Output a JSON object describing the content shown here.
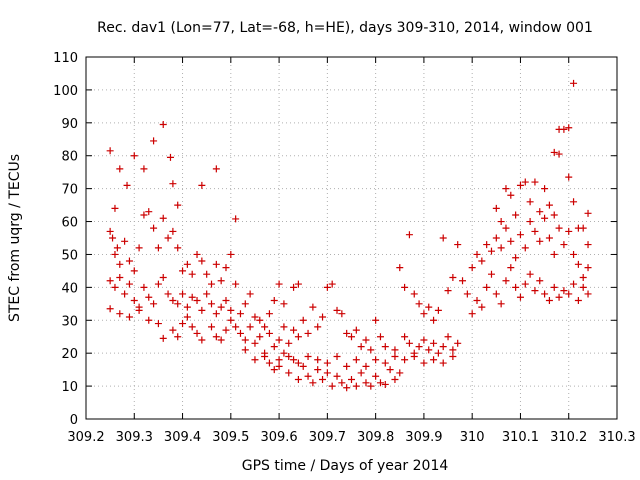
{
  "chart_data": {
    "type": "scatter",
    "title": "Rec. dav1 (Lon=77, Lat=-68, h=HE), days 309-310, 2014, window 001",
    "xlabel": "GPS time / Days of year 2014",
    "ylabel": "STEC from uqrg / TECUs",
    "xlim": [
      309.2,
      310.3
    ],
    "ylim": [
      0,
      110
    ],
    "xticks": [
      309.2,
      309.3,
      309.4,
      309.5,
      309.6,
      309.7,
      309.8,
      309.9,
      310,
      310.1,
      310.2,
      310.3
    ],
    "xtick_labels": [
      "309.2",
      "309.3",
      "309.4",
      "309.5",
      "309.6",
      "309.7",
      "309.8",
      "309.9",
      "310",
      "310.1",
      "310.2",
      "310.3"
    ],
    "yticks": [
      0,
      10,
      20,
      30,
      40,
      50,
      60,
      70,
      80,
      90,
      100,
      110
    ],
    "ytick_labels": [
      "0",
      "10",
      "20",
      "30",
      "40",
      "50",
      "60",
      "70",
      "80",
      "90",
      "100",
      "110"
    ],
    "grid": true,
    "marker": "+",
    "color": "#cc0000",
    "series": [
      {
        "name": "STEC",
        "points": [
          [
            309.25,
            81.5
          ],
          [
            309.26,
            64
          ],
          [
            309.27,
            76
          ],
          [
            309.285,
            71
          ],
          [
            309.3,
            80
          ],
          [
            309.32,
            76
          ],
          [
            309.34,
            84.5
          ],
          [
            309.36,
            89.5
          ],
          [
            309.375,
            79.5
          ],
          [
            309.38,
            71.5
          ],
          [
            309.39,
            65
          ],
          [
            309.44,
            71
          ],
          [
            309.47,
            76
          ],
          [
            309.51,
            60.8
          ],
          [
            309.25,
            57
          ],
          [
            309.255,
            55
          ],
          [
            309.26,
            50
          ],
          [
            309.265,
            52
          ],
          [
            309.27,
            47
          ],
          [
            309.28,
            54
          ],
          [
            309.29,
            48
          ],
          [
            309.3,
            45
          ],
          [
            309.31,
            52
          ],
          [
            309.32,
            62
          ],
          [
            309.33,
            63
          ],
          [
            309.34,
            58
          ],
          [
            309.35,
            52
          ],
          [
            309.36,
            61
          ],
          [
            309.37,
            55
          ],
          [
            309.38,
            57
          ],
          [
            309.39,
            52
          ],
          [
            309.4,
            45
          ],
          [
            309.41,
            47
          ],
          [
            309.42,
            44
          ],
          [
            309.43,
            50
          ],
          [
            309.44,
            48
          ],
          [
            309.45,
            44
          ],
          [
            309.46,
            41
          ],
          [
            309.47,
            47
          ],
          [
            309.48,
            42
          ],
          [
            309.49,
            46
          ],
          [
            309.5,
            50
          ],
          [
            309.51,
            41
          ],
          [
            309.25,
            42
          ],
          [
            309.26,
            40
          ],
          [
            309.27,
            43
          ],
          [
            309.28,
            38
          ],
          [
            309.29,
            41
          ],
          [
            309.3,
            36
          ],
          [
            309.31,
            34
          ],
          [
            309.32,
            40
          ],
          [
            309.33,
            37
          ],
          [
            309.34,
            35
          ],
          [
            309.35,
            41
          ],
          [
            309.36,
            43
          ],
          [
            309.37,
            38
          ],
          [
            309.38,
            36
          ],
          [
            309.39,
            35
          ],
          [
            309.4,
            38
          ],
          [
            309.41,
            34
          ],
          [
            309.42,
            37
          ],
          [
            309.43,
            36
          ],
          [
            309.44,
            33
          ],
          [
            309.45,
            38
          ],
          [
            309.46,
            35
          ],
          [
            309.47,
            32
          ],
          [
            309.48,
            34
          ],
          [
            309.49,
            36
          ],
          [
            309.5,
            33
          ],
          [
            309.25,
            33.5
          ],
          [
            309.27,
            32
          ],
          [
            309.29,
            31
          ],
          [
            309.31,
            33
          ],
          [
            309.33,
            30
          ],
          [
            309.35,
            29
          ],
          [
            309.36,
            24.5
          ],
          [
            309.38,
            27
          ],
          [
            309.39,
            25
          ],
          [
            309.4,
            29
          ],
          [
            309.41,
            31
          ],
          [
            309.42,
            28
          ],
          [
            309.43,
            26
          ],
          [
            309.44,
            24
          ],
          [
            309.46,
            28
          ],
          [
            309.47,
            25
          ],
          [
            309.48,
            24
          ],
          [
            309.49,
            27
          ],
          [
            309.5,
            30
          ],
          [
            309.51,
            28
          ],
          [
            309.52,
            32
          ],
          [
            309.53,
            35
          ],
          [
            309.54,
            38
          ],
          [
            309.55,
            31
          ],
          [
            309.56,
            30
          ],
          [
            309.57,
            28
          ],
          [
            309.58,
            32
          ],
          [
            309.59,
            36
          ],
          [
            309.6,
            41
          ],
          [
            309.61,
            35
          ],
          [
            309.63,
            40
          ],
          [
            309.64,
            41
          ],
          [
            309.52,
            26
          ],
          [
            309.53,
            24
          ],
          [
            309.54,
            28
          ],
          [
            309.55,
            23
          ],
          [
            309.56,
            25
          ],
          [
            309.57,
            20
          ],
          [
            309.58,
            26
          ],
          [
            309.59,
            22
          ],
          [
            309.6,
            24
          ],
          [
            309.61,
            28
          ],
          [
            309.62,
            23
          ],
          [
            309.63,
            27
          ],
          [
            309.64,
            25
          ],
          [
            309.65,
            30
          ],
          [
            309.66,
            26
          ],
          [
            309.67,
            34
          ],
          [
            309.68,
            28
          ],
          [
            309.69,
            31
          ],
          [
            309.7,
            40
          ],
          [
            309.71,
            41
          ],
          [
            309.72,
            33
          ],
          [
            309.73,
            32
          ],
          [
            309.74,
            26
          ],
          [
            309.75,
            25
          ],
          [
            309.76,
            27
          ],
          [
            309.77,
            22
          ],
          [
            309.78,
            24
          ],
          [
            309.79,
            21
          ],
          [
            309.8,
            30
          ],
          [
            309.81,
            25
          ],
          [
            309.53,
            21
          ],
          [
            309.55,
            18
          ],
          [
            309.57,
            19
          ],
          [
            309.58,
            17
          ],
          [
            309.59,
            15
          ],
          [
            309.6,
            16
          ],
          [
            309.61,
            20
          ],
          [
            309.62,
            14
          ],
          [
            309.63,
            18
          ],
          [
            309.64,
            12
          ],
          [
            309.65,
            16
          ],
          [
            309.66,
            13
          ],
          [
            309.67,
            11
          ],
          [
            309.68,
            15
          ],
          [
            309.69,
            12
          ],
          [
            309.7,
            14
          ],
          [
            309.71,
            10
          ],
          [
            309.72,
            13
          ],
          [
            309.73,
            11
          ],
          [
            309.74,
            9.5
          ],
          [
            309.75,
            12
          ],
          [
            309.76,
            10
          ],
          [
            309.77,
            14
          ],
          [
            309.78,
            11
          ],
          [
            309.79,
            10
          ],
          [
            309.8,
            13
          ],
          [
            309.81,
            11
          ],
          [
            309.82,
            10.5
          ],
          [
            309.83,
            15
          ],
          [
            309.84,
            12
          ],
          [
            309.85,
            14
          ],
          [
            309.6,
            18
          ],
          [
            309.62,
            19
          ],
          [
            309.64,
            17
          ],
          [
            309.66,
            19
          ],
          [
            309.68,
            18
          ],
          [
            309.7,
            17
          ],
          [
            309.72,
            19
          ],
          [
            309.74,
            16
          ],
          [
            309.76,
            18
          ],
          [
            309.78,
            16
          ],
          [
            309.8,
            18
          ],
          [
            309.82,
            17
          ],
          [
            309.84,
            19
          ],
          [
            309.86,
            18
          ],
          [
            309.88,
            19
          ],
          [
            309.9,
            17
          ],
          [
            309.92,
            18
          ],
          [
            309.94,
            17
          ],
          [
            309.96,
            19
          ],
          [
            309.82,
            22
          ],
          [
            309.84,
            21
          ],
          [
            309.86,
            25
          ],
          [
            309.87,
            23
          ],
          [
            309.88,
            20
          ],
          [
            309.89,
            22
          ],
          [
            309.9,
            24
          ],
          [
            309.91,
            21
          ],
          [
            309.92,
            23
          ],
          [
            309.93,
            20
          ],
          [
            309.94,
            22
          ],
          [
            309.95,
            25
          ],
          [
            309.96,
            21
          ],
          [
            309.97,
            23
          ],
          [
            309.85,
            46
          ],
          [
            309.86,
            40
          ],
          [
            309.87,
            56
          ],
          [
            309.88,
            38
          ],
          [
            309.89,
            35
          ],
          [
            309.9,
            32
          ],
          [
            309.91,
            34
          ],
          [
            309.92,
            30
          ],
          [
            309.93,
            33
          ],
          [
            309.94,
            55
          ],
          [
            309.95,
            39
          ],
          [
            309.96,
            43
          ],
          [
            309.97,
            53
          ],
          [
            309.98,
            42
          ],
          [
            309.99,
            38
          ],
          [
            310.0,
            32
          ],
          [
            310.01,
            36
          ],
          [
            310.02,
            34
          ],
          [
            310.03,
            40
          ],
          [
            310.04,
            44
          ],
          [
            310.05,
            38
          ],
          [
            310.06,
            35
          ],
          [
            310.07,
            42
          ],
          [
            310.08,
            46
          ],
          [
            310.09,
            40
          ],
          [
            310.1,
            37
          ],
          [
            310.11,
            41
          ],
          [
            310.12,
            44
          ],
          [
            310.13,
            39
          ],
          [
            310.14,
            42
          ],
          [
            310.15,
            38
          ],
          [
            310.16,
            36
          ],
          [
            310.17,
            40
          ],
          [
            310.18,
            37
          ],
          [
            310.19,
            39
          ],
          [
            310.2,
            38
          ],
          [
            310.21,
            41
          ],
          [
            310.22,
            36
          ],
          [
            310.23,
            40
          ],
          [
            310.24,
            38
          ],
          [
            310.0,
            46
          ],
          [
            310.01,
            50
          ],
          [
            310.02,
            48
          ],
          [
            310.03,
            53
          ],
          [
            310.04,
            51
          ],
          [
            310.05,
            55
          ],
          [
            310.06,
            52
          ],
          [
            310.07,
            58
          ],
          [
            310.08,
            54
          ],
          [
            310.09,
            49
          ],
          [
            310.1,
            56
          ],
          [
            310.11,
            52
          ],
          [
            310.12,
            60
          ],
          [
            310.13,
            57
          ],
          [
            310.14,
            54
          ],
          [
            310.15,
            61
          ],
          [
            310.16,
            55
          ],
          [
            310.17,
            50
          ],
          [
            310.18,
            58
          ],
          [
            310.19,
            53
          ],
          [
            310.2,
            57
          ],
          [
            310.21,
            50
          ],
          [
            310.22,
            47
          ],
          [
            310.23,
            58
          ],
          [
            310.24,
            53
          ],
          [
            310.05,
            64
          ],
          [
            310.06,
            60
          ],
          [
            310.07,
            70
          ],
          [
            310.08,
            68
          ],
          [
            310.09,
            62
          ],
          [
            310.1,
            71
          ],
          [
            310.11,
            72
          ],
          [
            310.12,
            66
          ],
          [
            310.13,
            72
          ],
          [
            310.14,
            63
          ],
          [
            310.15,
            70
          ],
          [
            310.16,
            65
          ],
          [
            310.17,
            62
          ],
          [
            310.18,
            88
          ],
          [
            310.19,
            88
          ],
          [
            310.2,
            73.5
          ],
          [
            310.21,
            102
          ],
          [
            310.17,
            81
          ],
          [
            310.18,
            80.5
          ],
          [
            310.2,
            88.5
          ],
          [
            310.24,
            62.5
          ],
          [
            310.21,
            66
          ],
          [
            310.22,
            58
          ],
          [
            310.23,
            43
          ],
          [
            310.24,
            46
          ]
        ]
      }
    ]
  }
}
